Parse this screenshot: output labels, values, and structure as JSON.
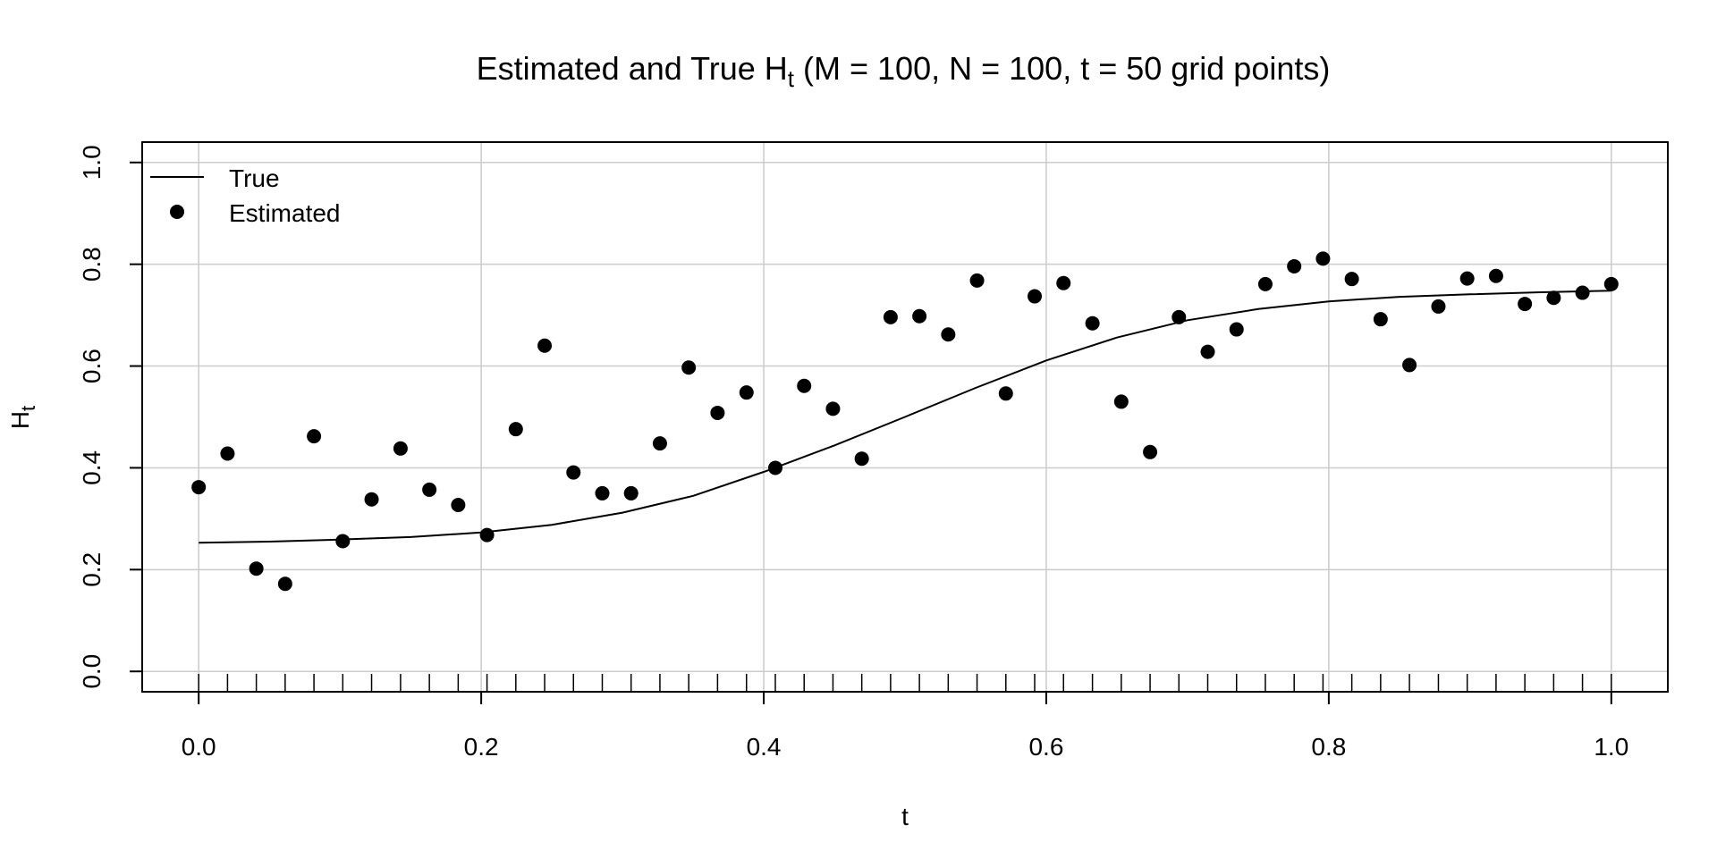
{
  "chart_data": {
    "type": "scatter",
    "title_main": "Estimated and True H",
    "title_sub": "t",
    "title_rest": " (M = 100, N = 100, t = 50 grid points)",
    "xlabel": "t",
    "ylabel_main": "H",
    "ylabel_sub": "t",
    "xlim": [
      -0.04,
      1.04
    ],
    "ylim": [
      -0.04,
      1.04
    ],
    "xticks": [
      "0.0",
      "0.2",
      "0.4",
      "0.6",
      "0.8",
      "1.0"
    ],
    "yticks": [
      "0.0",
      "0.2",
      "0.4",
      "0.6",
      "0.8",
      "1.0"
    ],
    "grid": true,
    "grid_color": "#cccccc",
    "rug": true,
    "legend_position": "top-left",
    "series": [
      {
        "name": "True",
        "style": "line",
        "color": "#000000",
        "x": [
          0.0,
          0.05,
          0.1,
          0.15,
          0.2,
          0.25,
          0.3,
          0.35,
          0.4,
          0.45,
          0.5,
          0.55,
          0.6,
          0.65,
          0.7,
          0.75,
          0.8,
          0.85,
          0.9,
          0.95,
          1.0
        ],
        "y": [
          0.253,
          0.255,
          0.259,
          0.264,
          0.273,
          0.288,
          0.312,
          0.345,
          0.392,
          0.444,
          0.5,
          0.557,
          0.611,
          0.656,
          0.69,
          0.712,
          0.727,
          0.736,
          0.741,
          0.745,
          0.748
        ]
      },
      {
        "name": "Estimated",
        "style": "points",
        "color": "#000000",
        "x": [
          0.0,
          0.0204,
          0.0408,
          0.0612,
          0.0816,
          0.102,
          0.1224,
          0.1429,
          0.1633,
          0.1837,
          0.2041,
          0.2245,
          0.2449,
          0.2653,
          0.2857,
          0.3061,
          0.3265,
          0.3469,
          0.3673,
          0.3878,
          0.4082,
          0.4286,
          0.449,
          0.4694,
          0.4898,
          0.5102,
          0.5306,
          0.551,
          0.5714,
          0.5918,
          0.6122,
          0.6327,
          0.6531,
          0.6735,
          0.6939,
          0.7143,
          0.7347,
          0.7551,
          0.7755,
          0.7959,
          0.8163,
          0.8367,
          0.8571,
          0.8776,
          0.898,
          0.9184,
          0.9388,
          0.9592,
          0.9796,
          1.0
        ],
        "y": [
          0.362,
          0.428,
          0.202,
          0.172,
          0.462,
          0.256,
          0.338,
          0.438,
          0.357,
          0.327,
          0.268,
          0.476,
          0.64,
          0.391,
          0.35,
          0.35,
          0.448,
          0.597,
          0.508,
          0.548,
          0.4,
          0.561,
          0.516,
          0.418,
          0.696,
          0.698,
          0.662,
          0.768,
          0.546,
          0.737,
          0.763,
          0.684,
          0.53,
          0.431,
          0.696,
          0.628,
          0.672,
          0.761,
          0.796,
          0.811,
          0.771,
          0.692,
          0.602,
          0.717,
          0.772,
          0.777,
          0.722,
          0.734,
          0.744,
          0.761
        ]
      }
    ]
  }
}
